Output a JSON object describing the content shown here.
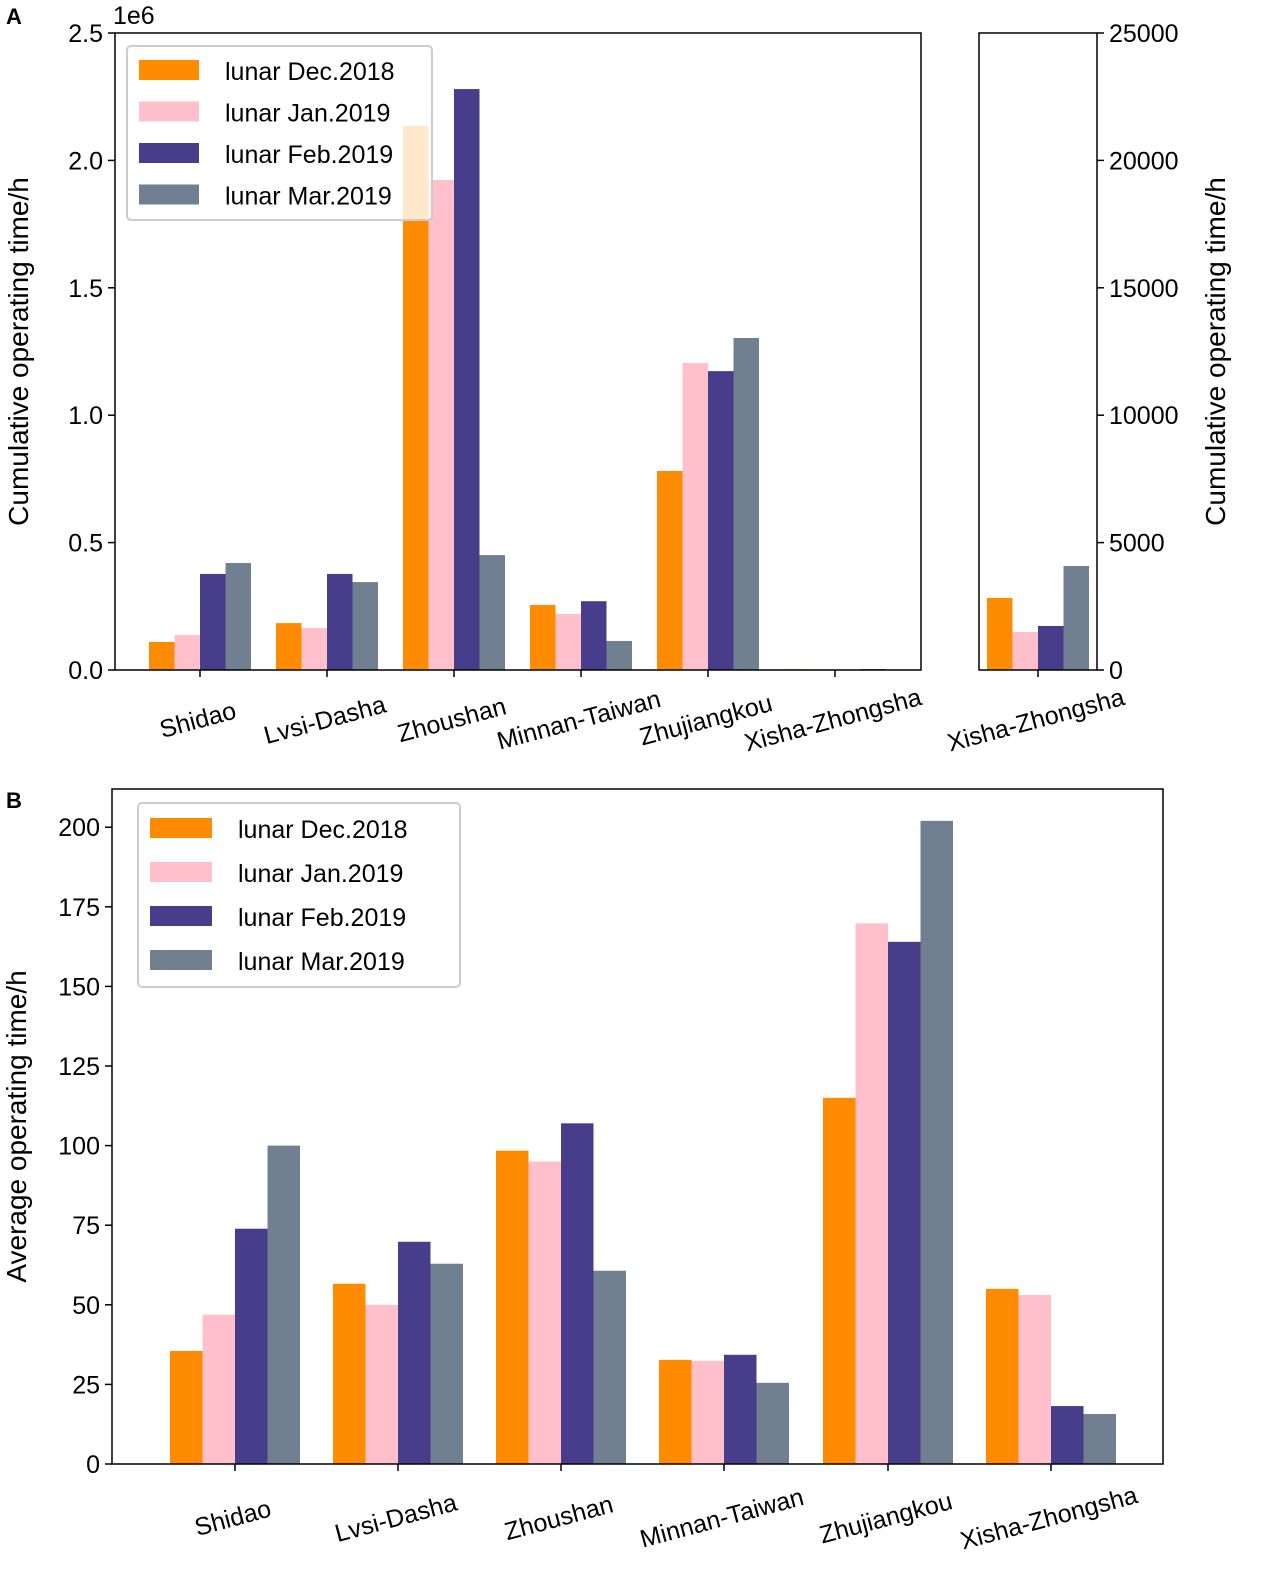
{
  "colors": [
    "#FF8C00",
    "#FFC0CB",
    "#483D8B",
    "#708090"
  ],
  "chart_data": [
    {
      "panel": "A",
      "type": "bar",
      "offset_label": "1e6",
      "ylabel": "Cumulative operating time/h",
      "ylim": [
        0,
        2.5
      ],
      "yticks": [
        "0.0",
        "0.5",
        "1.0",
        "1.5",
        "2.0",
        "2.5"
      ],
      "categories": [
        "Shidao",
        "Lvsi-Dasha",
        "Zhoushan",
        "Minnan-Taiwan",
        "Zhujiangkou",
        "Xisha-Zhongsha"
      ],
      "legend": "top-left",
      "series": [
        {
          "name": "lunar Dec.2018",
          "values": [
            0.11,
            0.184,
            2.135,
            0.255,
            0.781,
            0.003
          ]
        },
        {
          "name": "lunar Jan.2019",
          "values": [
            0.137,
            0.165,
            1.923,
            0.22,
            1.205,
            0.002
          ]
        },
        {
          "name": "lunar Feb.2019",
          "values": [
            0.377,
            0.377,
            2.28,
            0.27,
            1.173,
            0.002
          ]
        },
        {
          "name": "lunar Mar.2019",
          "values": [
            0.42,
            0.345,
            0.451,
            0.114,
            1.303,
            0.004
          ]
        }
      ]
    },
    {
      "panel": "A-inset",
      "type": "bar",
      "ylabel": "Cumulative operating time/h",
      "ylim": [
        0,
        25000
      ],
      "yticks": [
        "0",
        "5000",
        "10000",
        "15000",
        "20000",
        "25000"
      ],
      "categories": [
        "Xisha-Zhongsha"
      ],
      "series": [
        {
          "name": "lunar Dec.2018",
          "values": [
            2826
          ]
        },
        {
          "name": "lunar Jan.2019",
          "values": [
            1491
          ]
        },
        {
          "name": "lunar Feb.2019",
          "values": [
            1727
          ]
        },
        {
          "name": "lunar Mar.2019",
          "values": [
            4082
          ]
        }
      ]
    },
    {
      "panel": "B",
      "type": "bar",
      "ylabel": "Average operating time/h",
      "ylim": [
        0,
        212
      ],
      "yticks": [
        "0",
        "25",
        "50",
        "75",
        "100",
        "125",
        "150",
        "175",
        "200"
      ],
      "categories": [
        "Shidao",
        "Lvsi-Dasha",
        "Zhoushan",
        "Minnan-Taiwan",
        "Zhujiangkou",
        "Xisha-Zhongsha"
      ],
      "legend": "top-left",
      "series": [
        {
          "name": "lunar Dec.2018",
          "values": [
            35.5,
            56.6,
            98.4,
            32.7,
            115,
            55
          ]
        },
        {
          "name": "lunar Jan.2019",
          "values": [
            46.9,
            50,
            95,
            32.4,
            169.8,
            53.1
          ]
        },
        {
          "name": "lunar Feb.2019",
          "values": [
            73.9,
            69.8,
            107,
            34.3,
            164,
            18.2
          ]
        },
        {
          "name": "lunar Mar.2019",
          "values": [
            100,
            62.9,
            60.7,
            25.5,
            202,
            15.7
          ]
        }
      ]
    }
  ]
}
